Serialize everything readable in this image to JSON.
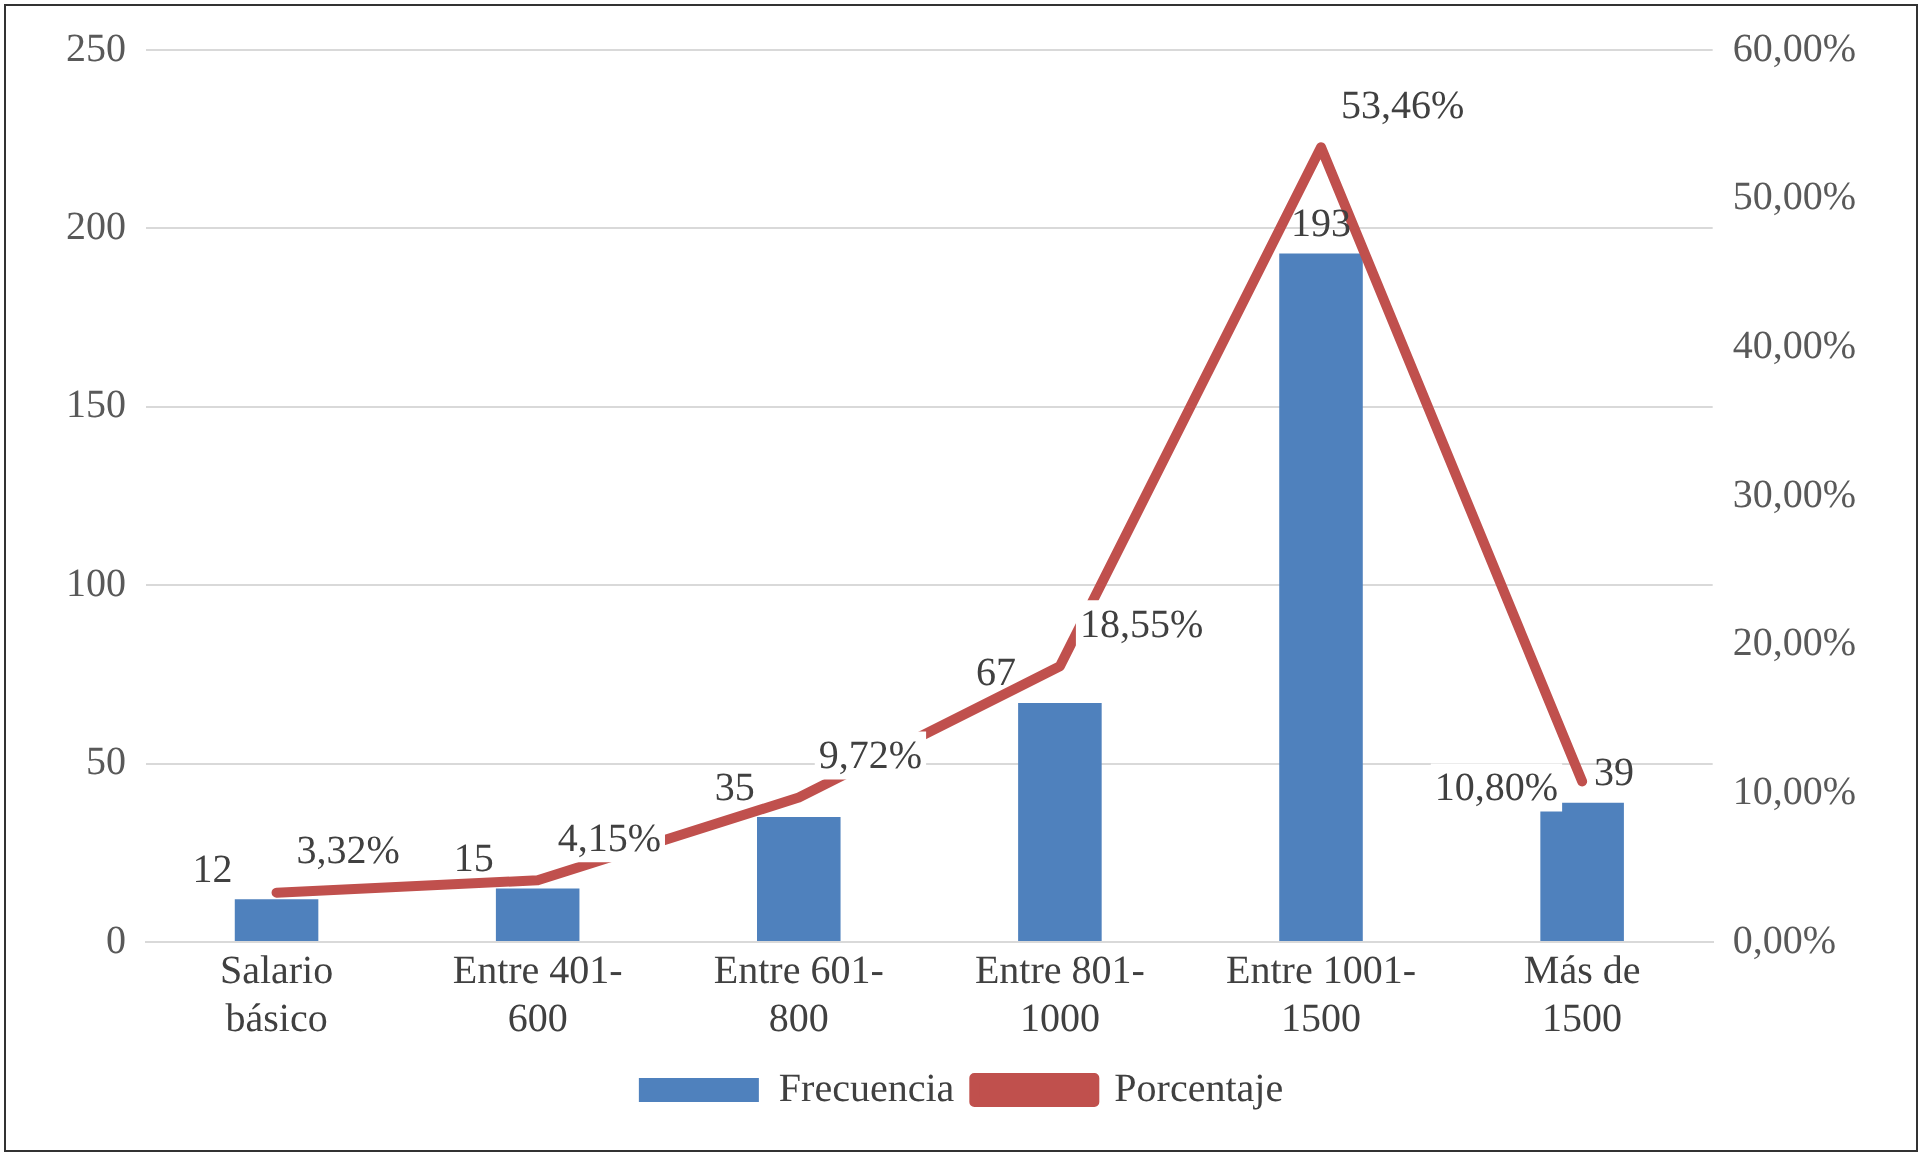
{
  "chart_data": {
    "type": "bar",
    "categories": [
      "Salario básico",
      "Entre 401-600",
      "Entre 601-800",
      "Entre 801-1000",
      "Entre 1001-1500",
      "Más de 1500"
    ],
    "series": [
      {
        "name": "Frecuencia",
        "color": "#4f81bd",
        "values": [
          12,
          15,
          35,
          67,
          193,
          39
        ],
        "value_labels": [
          "12",
          "15",
          "35",
          "67",
          "193",
          "39"
        ]
      },
      {
        "name": "Porcentaje",
        "type": "line",
        "axis": "y2",
        "color": "#c0504d",
        "values": [
          3.32,
          4.15,
          9.72,
          18.55,
          53.46,
          10.8
        ],
        "value_labels": [
          "3,32%",
          "4,15%",
          "9,72%",
          "18,55%",
          "53,46%",
          "10,80%"
        ]
      }
    ],
    "ylim": [
      0,
      250
    ],
    "yticks": [
      0,
      50,
      100,
      150,
      200,
      250
    ],
    "y2lim": [
      0,
      60
    ],
    "y2ticks": [
      {
        "value": 0,
        "label": "0,00%"
      },
      {
        "value": 10,
        "label": "10,00%"
      },
      {
        "value": 20,
        "label": "20,00%"
      },
      {
        "value": 30,
        "label": "30,00%"
      },
      {
        "value": 40,
        "label": "40,00%"
      },
      {
        "value": 50,
        "label": "50,00%"
      },
      {
        "value": 60,
        "label": "60,00%"
      }
    ],
    "grid": "y",
    "legend": "bottom",
    "marker": "none"
  }
}
